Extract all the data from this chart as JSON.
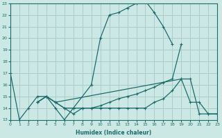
{
  "xlabel": "Humidex (Indice chaleur)",
  "bg_color": "#cce8e4",
  "grid_color": "#aaccca",
  "line_color": "#1a6b6b",
  "xlim": [
    0,
    23
  ],
  "ylim": [
    13,
    23
  ],
  "yticks": [
    13,
    14,
    15,
    16,
    17,
    18,
    19,
    20,
    21,
    22,
    23
  ],
  "xticks": [
    0,
    1,
    2,
    3,
    4,
    5,
    6,
    7,
    8,
    9,
    10,
    11,
    12,
    13,
    14,
    15,
    16,
    17,
    18,
    19,
    20,
    21,
    22,
    23
  ],
  "series": [
    {
      "x": [
        0,
        1,
        2,
        3,
        4,
        5,
        6,
        7,
        9,
        10,
        11,
        12,
        13,
        14,
        15,
        16,
        17,
        18
      ],
      "y": [
        17,
        13,
        14,
        15,
        15,
        14,
        13,
        14,
        16,
        20,
        22,
        22.2,
        22.6,
        23.0,
        23.2,
        22.2,
        21.0,
        19.5
      ]
    },
    {
      "x": [
        3,
        4,
        5,
        19,
        20,
        21,
        22,
        23
      ],
      "y": [
        14.5,
        15,
        14.5,
        16.5,
        14.5,
        14.5,
        13.5,
        13.5
      ]
    },
    {
      "x": [
        3,
        4,
        5,
        6,
        7,
        8,
        9,
        10,
        11,
        12,
        13,
        14,
        15,
        16,
        17,
        18,
        19,
        20,
        21,
        22,
        23
      ],
      "y": [
        14.5,
        15,
        14.5,
        14,
        14,
        14,
        14,
        14,
        14,
        14,
        14,
        14,
        14,
        14.5,
        14.8,
        15.5,
        16.5,
        16.5,
        13.5,
        13.5,
        13.5
      ]
    },
    {
      "x": [
        3,
        4,
        5,
        6,
        7,
        8,
        9,
        10,
        11,
        12,
        13,
        14,
        15,
        16,
        17,
        18,
        19
      ],
      "y": [
        14.5,
        15,
        14.5,
        14,
        13.5,
        14,
        14,
        14.2,
        14.5,
        14.8,
        15,
        15.2,
        15.5,
        15.8,
        16.2,
        16.5,
        19.5
      ]
    }
  ]
}
